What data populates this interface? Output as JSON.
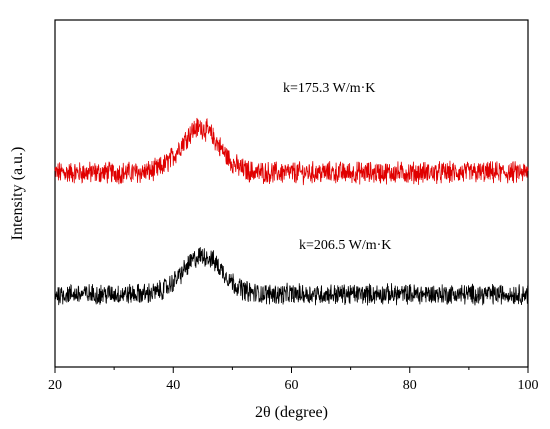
{
  "chart_data": {
    "type": "line",
    "title": "",
    "xlabel": "2θ (degree)",
    "ylabel": "Intensity (a.u.)",
    "xlim": [
      20,
      100
    ],
    "xticks": [
      20,
      40,
      60,
      80,
      100
    ],
    "y_ticks_shown": false,
    "grid": false,
    "legend": "none",
    "series": [
      {
        "color": "#e00000",
        "annotation": "k=175.3 W/m·K",
        "baseline": 0.56,
        "noise": 0.028,
        "peak_center": 44.5,
        "peak_height": 0.13,
        "peak_width": 3.2,
        "x": [
          20,
          30,
          40,
          42,
          44,
          45,
          46,
          48,
          50,
          60,
          70,
          80,
          90,
          100
        ],
        "y": [
          0.56,
          0.57,
          0.61,
          0.65,
          0.69,
          0.69,
          0.67,
          0.61,
          0.58,
          0.565,
          0.56,
          0.555,
          0.55,
          0.55
        ]
      },
      {
        "color": "#000000",
        "annotation": "k=206.5 W/m·K",
        "baseline": 0.21,
        "noise": 0.026,
        "peak_center": 45,
        "peak_height": 0.11,
        "peak_width": 3.3,
        "x": [
          20,
          30,
          40,
          42,
          44,
          45,
          46,
          48,
          50,
          60,
          70,
          80,
          90,
          100
        ],
        "y": [
          0.205,
          0.215,
          0.25,
          0.28,
          0.31,
          0.32,
          0.305,
          0.255,
          0.225,
          0.21,
          0.205,
          0.205,
          0.205,
          0.205
        ]
      }
    ]
  }
}
